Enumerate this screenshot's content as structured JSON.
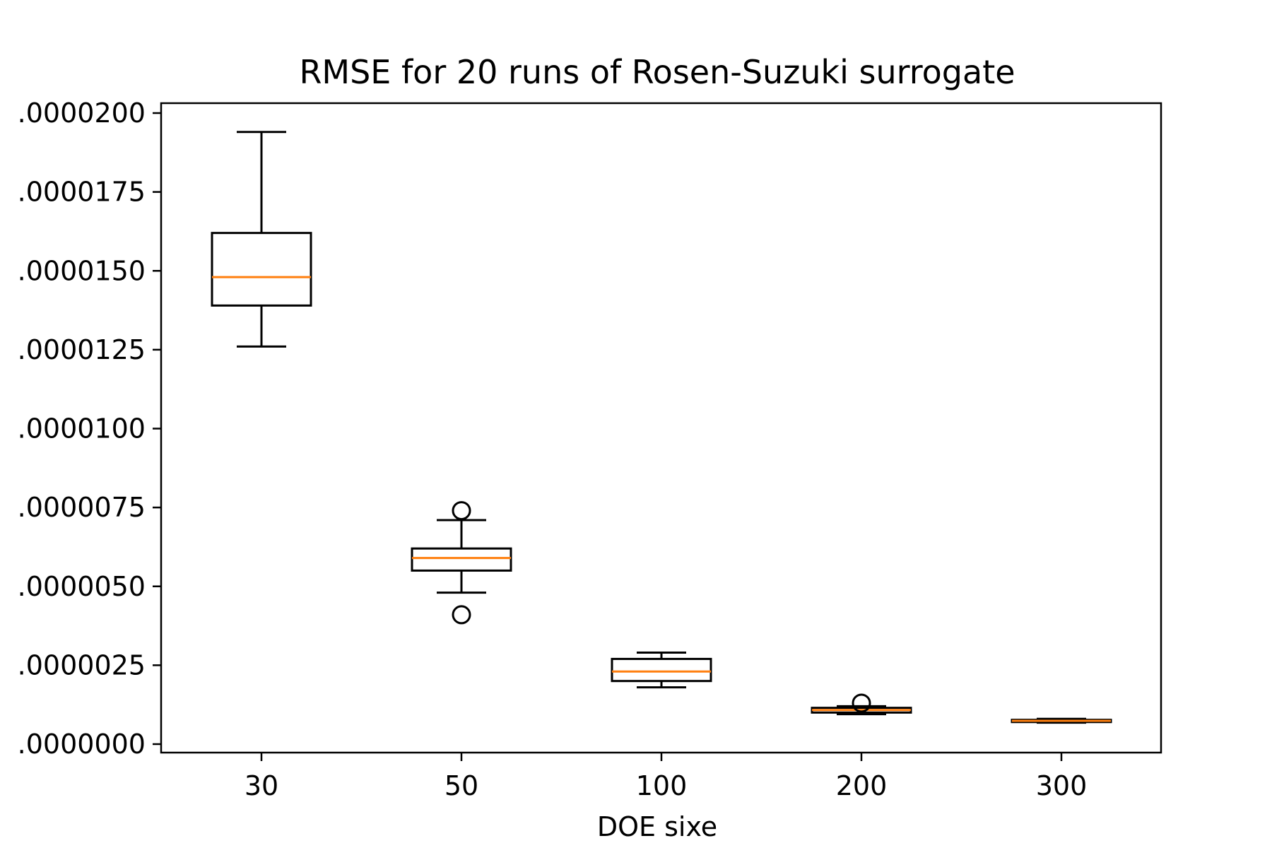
{
  "chart_data": {
    "type": "box",
    "title": "RMSE for 20 runs of Rosen-Suzuki surrogate",
    "xlabel": "DOE sixe",
    "ylabel": "",
    "categories": [
      "30",
      "50",
      "100",
      "200",
      "300"
    ],
    "ylim": [
      -2e-07,
      2e-05
    ],
    "yticks": [
      {
        "value": 0.0,
        "label": ".0000000"
      },
      {
        "value": 2.5e-06,
        "label": ".0000025"
      },
      {
        "value": 5e-06,
        "label": ".0000050"
      },
      {
        "value": 7.5e-06,
        "label": ".0000075"
      },
      {
        "value": 1e-05,
        "label": ".0000100"
      },
      {
        "value": 1.25e-05,
        "label": ".0000125"
      },
      {
        "value": 1.5e-05,
        "label": ".0000150"
      },
      {
        "value": 1.75e-05,
        "label": ".0000175"
      },
      {
        "value": 2e-05,
        "label": ".0000200"
      }
    ],
    "grid": false,
    "boxes": [
      {
        "category": "30",
        "whisker_low": 1.26e-05,
        "q1": 1.39e-05,
        "median": 1.48e-05,
        "q3": 1.62e-05,
        "whisker_high": 1.94e-05,
        "outliers": []
      },
      {
        "category": "50",
        "whisker_low": 4.8e-06,
        "q1": 5.5e-06,
        "median": 5.9e-06,
        "q3": 6.2e-06,
        "whisker_high": 7.1e-06,
        "outliers": [
          7.4e-06,
          4.1e-06
        ]
      },
      {
        "category": "100",
        "whisker_low": 1.8e-06,
        "q1": 2e-06,
        "median": 2.3e-06,
        "q3": 2.7e-06,
        "whisker_high": 2.9e-06,
        "outliers": []
      },
      {
        "category": "200",
        "whisker_low": 9.5e-07,
        "q1": 1e-06,
        "median": 1.08e-06,
        "q3": 1.15e-06,
        "whisker_high": 1.2e-06,
        "outliers": [
          1.3e-06
        ]
      },
      {
        "category": "300",
        "whisker_low": 6.8e-07,
        "q1": 7e-07,
        "median": 7.4e-07,
        "q3": 7.7e-07,
        "whisker_high": 8e-07,
        "outliers": []
      }
    ],
    "colors": {
      "box": "#000000",
      "median": "#ff7f0e",
      "axes": "#000000"
    }
  }
}
